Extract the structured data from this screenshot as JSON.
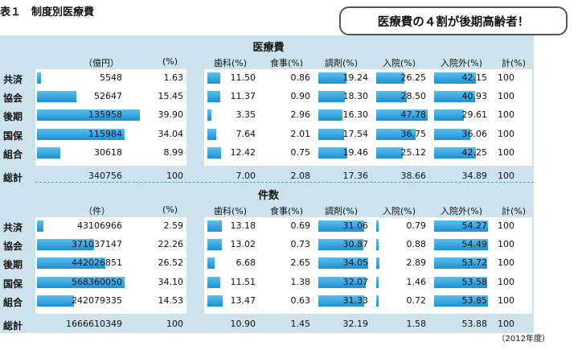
{
  "title": "表１　制度別医療費",
  "callout": "医療費の４割が後期高齢者！",
  "footnote": "（2012年度）",
  "columns": [
    "歯科(%)",
    "食事(%)",
    "調剤(%)",
    "入院(%)",
    "入院外(%)",
    "計(%)"
  ],
  "rows": [
    "共済",
    "協会",
    "後期",
    "国保",
    "組合"
  ],
  "total_label": "総計",
  "sections": [
    {
      "title": "医療費",
      "left_headers": [
        "（億円）",
        "(%)"
      ],
      "data": [
        {
          "v": "5548",
          "p": "1.63",
          "c": [
            "11.50",
            "0.86",
            "19.24",
            "26.25",
            "42.15",
            "100"
          ]
        },
        {
          "v": "52647",
          "p": "15.45",
          "c": [
            "11.37",
            "0.90",
            "18.30",
            "28.50",
            "40.93",
            "100"
          ]
        },
        {
          "v": "135958",
          "p": "39.90",
          "c": [
            "3.35",
            "2.96",
            "16.30",
            "47.78",
            "29.61",
            "100"
          ]
        },
        {
          "v": "115984",
          "p": "34.04",
          "c": [
            "7.64",
            "2.01",
            "17.54",
            "36.75",
            "36.06",
            "100"
          ]
        },
        {
          "v": "30618",
          "p": "8.99",
          "c": [
            "12.42",
            "0.75",
            "19.46",
            "25.12",
            "42.25",
            "100"
          ]
        }
      ],
      "total": {
        "v": "340756",
        "p": "100",
        "c": [
          "7.00",
          "2.08",
          "17.36",
          "38.66",
          "34.89",
          "100"
        ]
      }
    },
    {
      "title": "件数",
      "left_headers": [
        "（件）",
        "(%)"
      ],
      "data": [
        {
          "v": "43106966",
          "p": "2.59",
          "c": [
            "13.18",
            "0.69",
            "31.06",
            "0.79",
            "54.27",
            "100"
          ]
        },
        {
          "v": "371037147",
          "p": "22.26",
          "c": [
            "13.02",
            "0.73",
            "30.87",
            "0.88",
            "54.49",
            "100"
          ]
        },
        {
          "v": "442026851",
          "p": "26.52",
          "c": [
            "6.68",
            "2.65",
            "34.05",
            "2.89",
            "53.72",
            "100"
          ]
        },
        {
          "v": "568360050",
          "p": "34.10",
          "c": [
            "11.51",
            "1.38",
            "32.07",
            "1.46",
            "53.58",
            "100"
          ]
        },
        {
          "v": "242079335",
          "p": "14.53",
          "c": [
            "13.47",
            "0.63",
            "31.33",
            "0.72",
            "53.85",
            "100"
          ]
        }
      ],
      "total": {
        "v": "1666610349",
        "p": "100",
        "c": [
          "10.90",
          "1.45",
          "32.19",
          "1.58",
          "53.88",
          "100"
        ]
      }
    }
  ]
}
